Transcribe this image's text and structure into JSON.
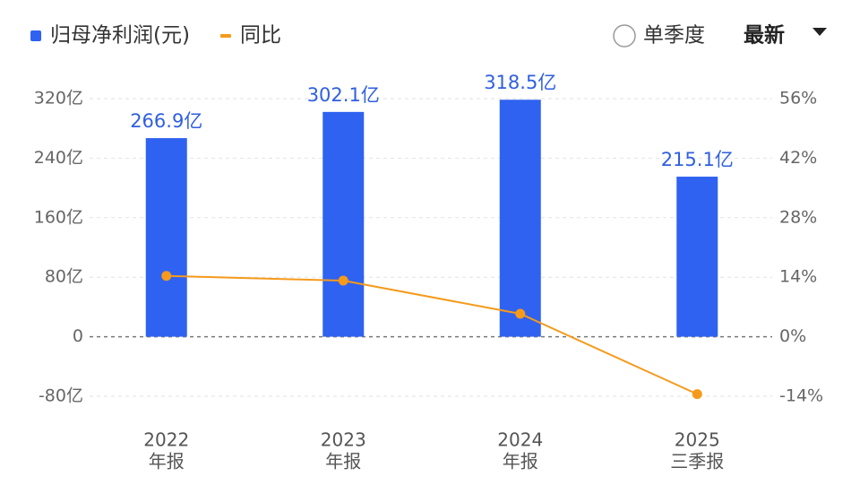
{
  "chart_data": {
    "type": "bar",
    "categories": [
      "2022",
      "2023",
      "2024",
      "2025"
    ],
    "category_sublabels": [
      "年报",
      "年报",
      "年报",
      "三季报"
    ],
    "series": [
      {
        "name": "归母净利润(元)",
        "color": "#2f62f0",
        "type": "bar",
        "values": [
          266.9,
          302.1,
          318.5,
          215.1
        ],
        "value_labels": [
          "266.9亿",
          "302.1亿",
          "318.5亿",
          "215.1亿"
        ]
      },
      {
        "name": "同比",
        "color": "#f59a1b",
        "type": "line",
        "axis": "y2",
        "values": [
          14.3,
          13.2,
          5.4,
          -13.5
        ]
      }
    ],
    "ylim": [
      -80,
      320
    ],
    "yticks": [
      {
        "value": -80,
        "label": "-80亿"
      },
      0,
      {
        "value": 80,
        "label": "80亿"
      },
      {
        "value": 160,
        "label": "160亿"
      },
      {
        "value": 240,
        "label": "240亿"
      },
      {
        "value": 320,
        "label": "320亿"
      }
    ],
    "y2lim": [
      -14,
      56
    ],
    "y2ticks": [
      {
        "value": -14,
        "label": "-14%"
      },
      {
        "value": 0,
        "label": "0%"
      },
      {
        "value": 14,
        "label": "14%"
      },
      {
        "value": 28,
        "label": "28%"
      },
      {
        "value": 42,
        "label": "42%"
      },
      {
        "value": 56,
        "label": "56%"
      }
    ],
    "grid": true
  },
  "controls": {
    "toggle": "单季度",
    "dropdown": "最新"
  }
}
